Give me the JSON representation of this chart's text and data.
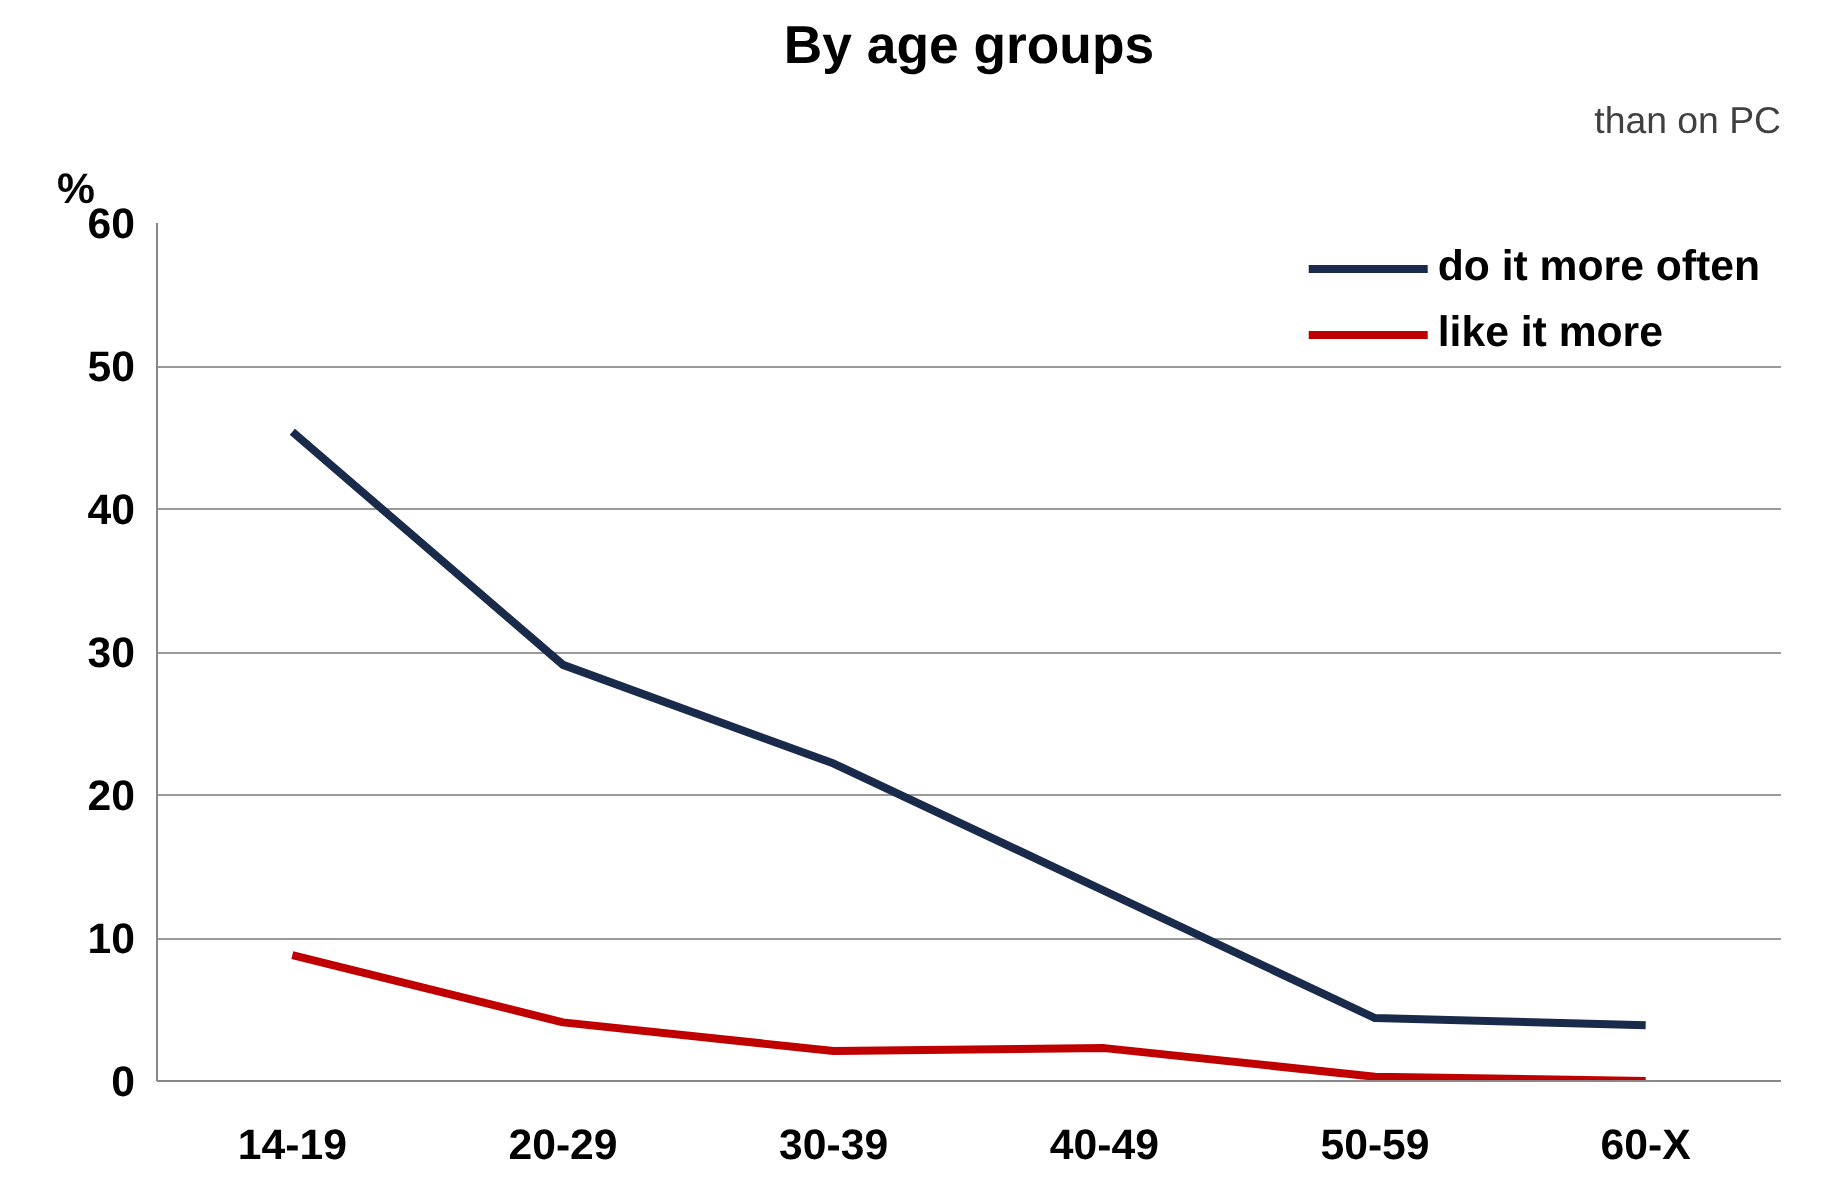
{
  "chart_data": {
    "type": "line",
    "title": "By age groups",
    "ylabel": "%",
    "categories": [
      "14-19",
      "20-29",
      "30-39",
      "40-49",
      "50-59",
      "60-X"
    ],
    "series": [
      {
        "name": "do it more often",
        "color": "#1a2a4a",
        "values": [
          45.4,
          29.1,
          22.2,
          13.3,
          4.4,
          3.9
        ]
      },
      {
        "name": "like it more",
        "color": "#c00000",
        "values": [
          8.8,
          4.1,
          2.1,
          2.3,
          0.3,
          0.0
        ]
      }
    ],
    "ylim": [
      0,
      60
    ],
    "yticks": [
      0,
      10,
      20,
      30,
      40,
      50,
      60
    ],
    "grid": "y",
    "legend": "top right",
    "marker": "none",
    "line_style": "solid",
    "annotations": [
      "than on PC"
    ]
  }
}
